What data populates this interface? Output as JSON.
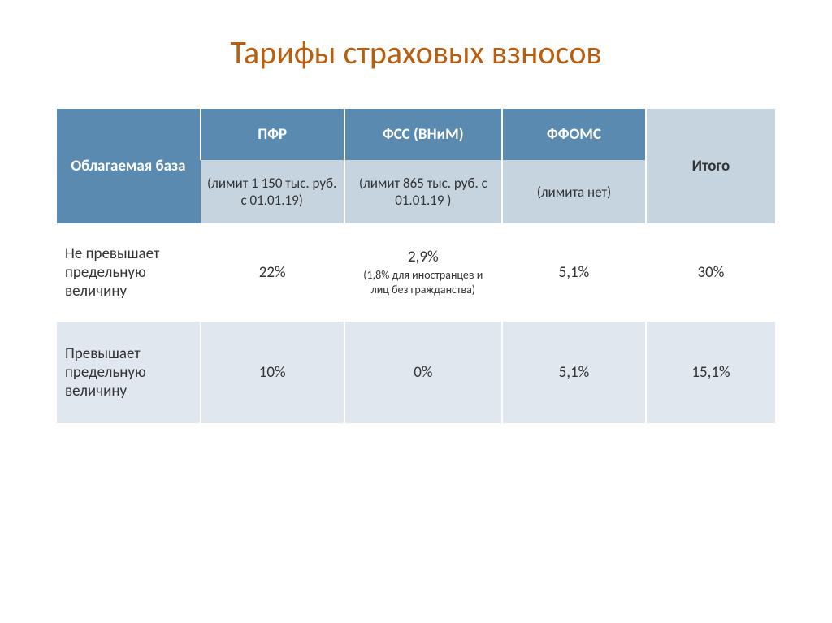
{
  "title": "Тарифы страховых взносов",
  "header": {
    "col0": "Облагаемая база",
    "col1": "ПФР",
    "col2": "ФСС (ВНиМ)",
    "col3": "ФФОМС",
    "col4": "Итого"
  },
  "sub": {
    "col1": "(лимит 1 150 тыс. руб. с 01.01.19)",
    "col2": "(лимит 865 тыс. руб. с 01.01.19 )",
    "col3": "(лимита нет)"
  },
  "rows": [
    {
      "label": "Не превышает предельную величину",
      "pfr": "22%",
      "fss": "2,9%",
      "fss_note": "(1,8% для иностранцев и лиц без гражданства)",
      "ffoms": "5,1%",
      "total": "30%"
    },
    {
      "label": "Превышает предельную величину",
      "pfr": "10%",
      "fss": "0%",
      "fss_note": "",
      "ffoms": "5,1%",
      "total": "15,1%"
    }
  ],
  "style": {
    "title_color": "#b95e0e",
    "header_bg": "#5a8ab0",
    "sub_bg": "#c6d4e0",
    "alt_row_bg": "#e0e7ef",
    "light_row_bg": "#ffffff",
    "border_color": "#ffffff",
    "title_fontsize": 40,
    "header_fontsize": 19,
    "body_fontsize": 19
  }
}
